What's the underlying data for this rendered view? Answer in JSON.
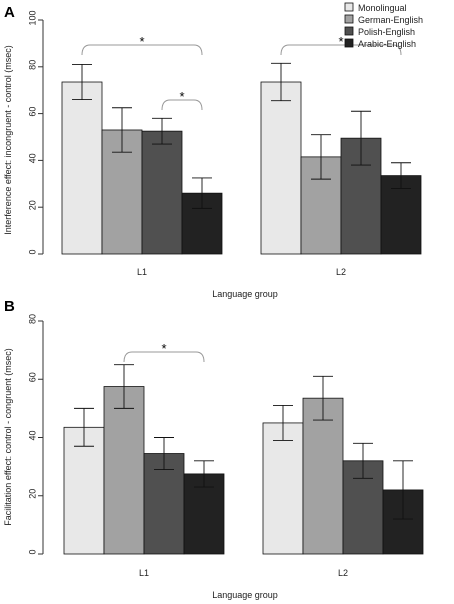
{
  "colors": {
    "Monolingual": "#e8e8e8",
    "German-English": "#a2a2a2",
    "Polish-English": "#505050",
    "Arabic-English": "#222222"
  },
  "chart_data": [
    {
      "panel": "A",
      "type": "bar",
      "xlabel": "Language group",
      "ylabel": "Interference effect: incongruent - control (msec)",
      "ylim": [
        0,
        100
      ],
      "yticks": [
        "0",
        "20",
        "40",
        "60",
        "80",
        "100"
      ],
      "categories": [
        "L1",
        "L2"
      ],
      "legend": {
        "position": "top-right"
      },
      "series": [
        {
          "name": "Monolingual",
          "values": [
            73.5,
            73.5
          ],
          "errors": [
            7.5,
            8
          ]
        },
        {
          "name": "German-English",
          "values": [
            53,
            41.5
          ],
          "errors": [
            9.5,
            9.5
          ]
        },
        {
          "name": "Polish-English",
          "values": [
            52.5,
            49.5
          ],
          "errors": [
            5.5,
            11.5
          ]
        },
        {
          "name": "Arabic-English",
          "values": [
            26,
            33.5
          ],
          "errors": [
            6.5,
            5.5
          ]
        }
      ],
      "annotations": [
        {
          "text": "*",
          "category": "L1",
          "from": "Monolingual",
          "to": "Arabic-English"
        },
        {
          "text": "*",
          "category": "L1",
          "from": "Polish-English",
          "to": "Arabic-English"
        },
        {
          "text": "*",
          "category": "L2",
          "from": "Monolingual",
          "to": "Arabic-English"
        }
      ]
    },
    {
      "panel": "B",
      "type": "bar",
      "xlabel": "Language group",
      "ylabel": "Facilitation effect: control - congruent (msec)",
      "ylim": [
        0,
        80
      ],
      "yticks": [
        "0",
        "20",
        "40",
        "60",
        "80"
      ],
      "categories": [
        "L1",
        "L2"
      ],
      "series": [
        {
          "name": "Monolingual",
          "values": [
            43.5,
            45
          ],
          "errors": [
            6.5,
            6
          ]
        },
        {
          "name": "German-English",
          "values": [
            57.5,
            53.5
          ],
          "errors": [
            7.5,
            7.5
          ]
        },
        {
          "name": "Polish-English",
          "values": [
            34.5,
            32
          ],
          "errors": [
            5.5,
            6
          ]
        },
        {
          "name": "Arabic-English",
          "values": [
            27.5,
            22
          ],
          "errors": [
            4.5,
            10
          ]
        }
      ],
      "annotations": [
        {
          "text": "*",
          "category": "L1",
          "from": "German-English",
          "to": "Arabic-English"
        }
      ]
    }
  ]
}
